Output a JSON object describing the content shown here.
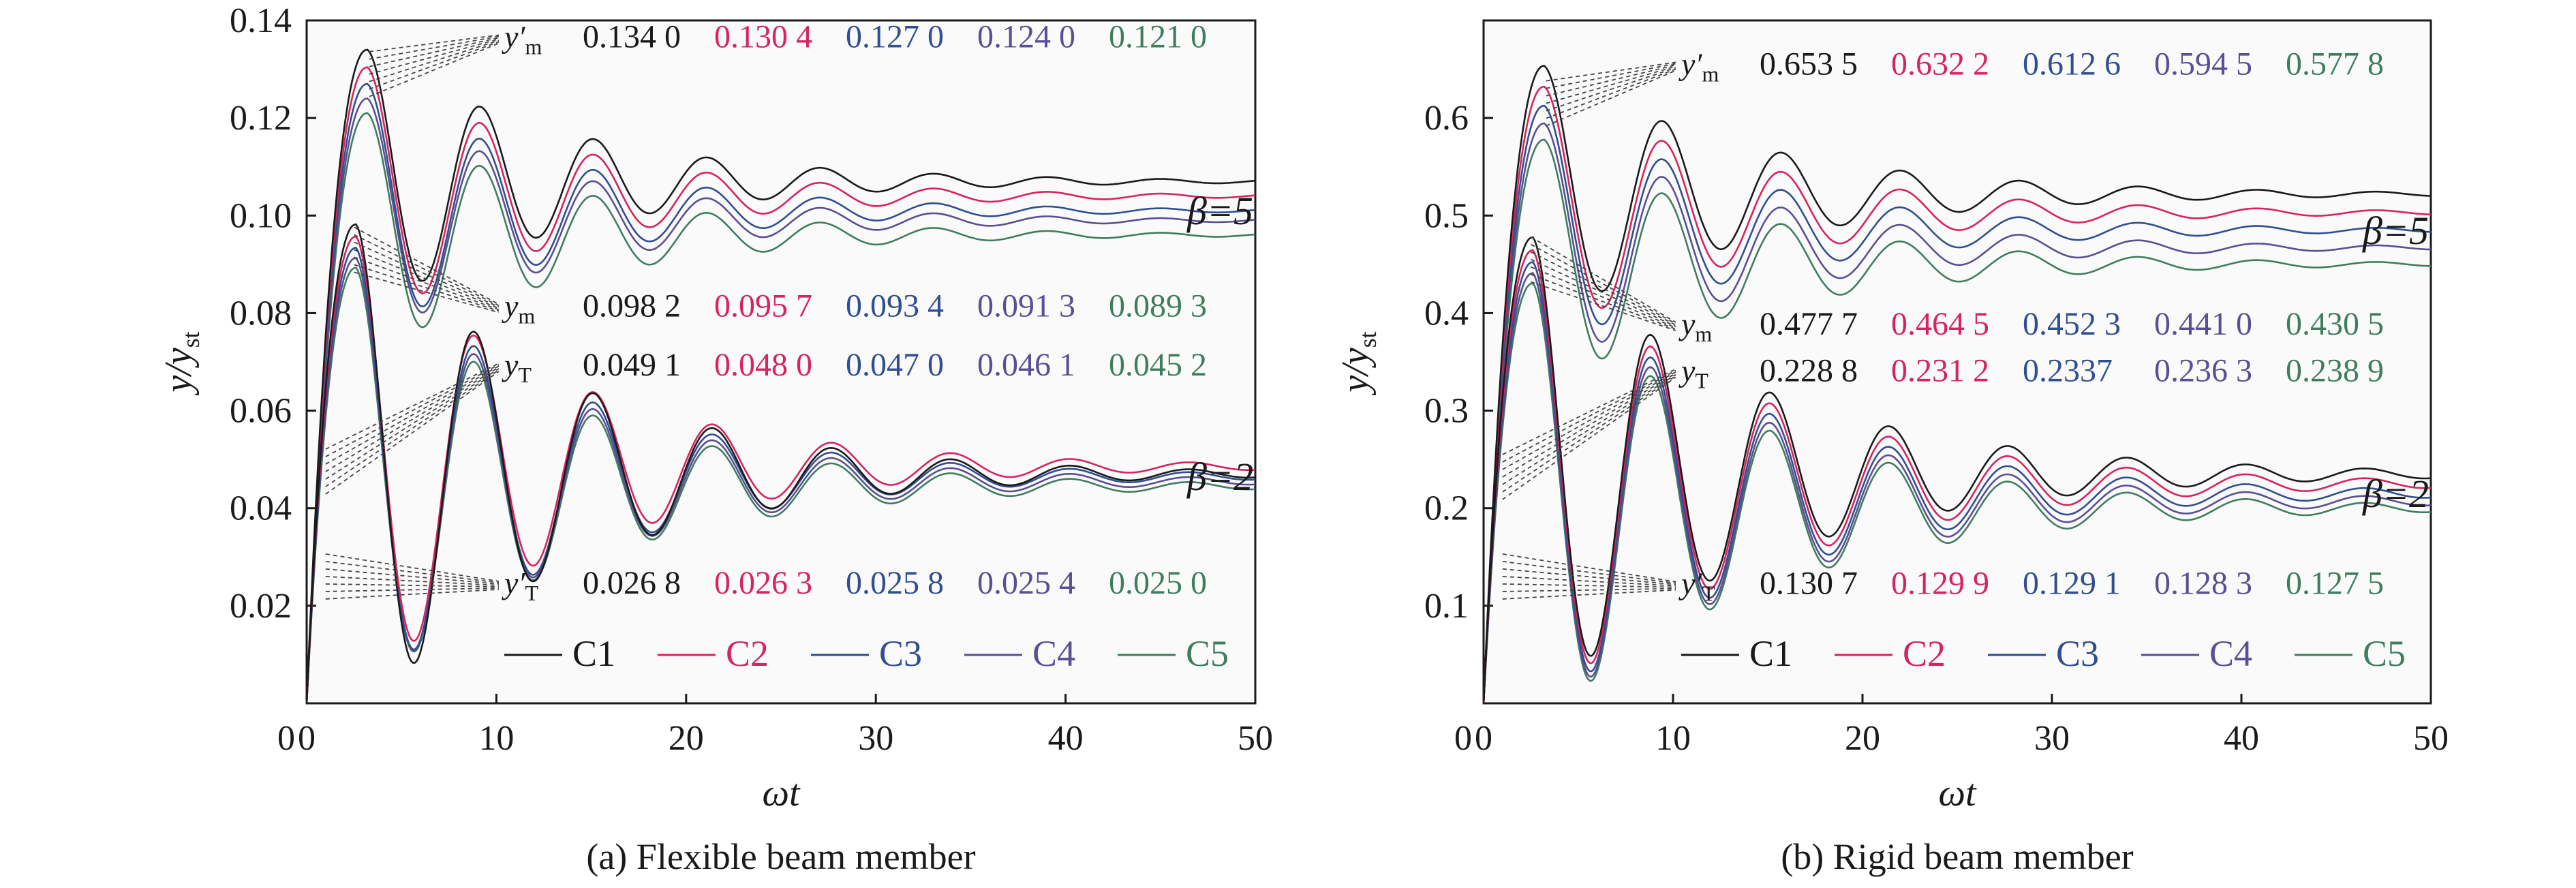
{
  "colors": {
    "C1": "#1a1a1a",
    "C2": "#d6245c",
    "C3": "#2f4f8f",
    "C4": "#5a4f92",
    "C5": "#3f7d5f"
  },
  "legend": [
    "C1",
    "C2",
    "C3",
    "C4",
    "C5"
  ],
  "chart_data": [
    {
      "type": "line",
      "caption": "(a) Flexible beam member",
      "xlabel": "ωt",
      "ylabel": "y/y",
      "ylabel_sub": "st",
      "xlim": [
        0,
        50
      ],
      "ylim": [
        0,
        0.14
      ],
      "xticks": [
        "0",
        "10",
        "20",
        "30",
        "40",
        "50"
      ],
      "yticks": [
        "0.02",
        "0.04",
        "0.06",
        "0.08",
        "0.10",
        "0.12",
        "0.14"
      ],
      "curves": {
        "beta5": {
          "label": "β=5",
          "peak_t": 3.2,
          "omega": 1.05,
          "decay": 0.095,
          "finals": [
            0.107,
            0.104,
            0.101,
            0.099,
            0.096
          ],
          "peaks": [
            0.134,
            0.1304,
            0.127,
            0.124,
            0.121
          ]
        },
        "beta2": {
          "label": "β=2",
          "peak_t": 2.6,
          "omega": 1.0,
          "decay": 0.09,
          "finals": [
            0.047,
            0.0485,
            0.0465,
            0.0455,
            0.0445
          ],
          "peaks": [
            0.0982,
            0.0957,
            0.0934,
            0.0913,
            0.0893
          ]
        }
      },
      "annotations": [
        {
          "sym": "y′",
          "sub": "m",
          "values": [
            "0.134 0",
            "0.130 4",
            "0.127 0",
            "0.124 0",
            "0.121 0"
          ],
          "anchor": [
            3.3,
            0.129
          ],
          "label_y": 0.1345
        },
        {
          "sym": "y",
          "sub": "m",
          "values": [
            "0.098 2",
            "0.095 7",
            "0.093 4",
            "0.091 3",
            "0.089 3"
          ],
          "anchor": [
            2.5,
            0.093
          ],
          "label_y": 0.0793
        },
        {
          "sym": "y",
          "sub": "T",
          "values": [
            "0.049 1",
            "0.048 0",
            "0.047 0",
            "0.046 1",
            "0.045 2"
          ],
          "anchor": [
            1.0,
            0.0475
          ],
          "label_y": 0.0672
        },
        {
          "sym": "y′",
          "sub": "T",
          "values": [
            "0.026 8",
            "0.026 3",
            "0.025 8",
            "0.025 4",
            "0.025 0"
          ],
          "anchor": [
            1.0,
            0.026
          ],
          "label_y": 0.0225
        }
      ]
    },
    {
      "type": "line",
      "caption": "(b) Rigid beam member",
      "xlabel": "ωt",
      "ylabel": "y/y",
      "ylabel_sub": "st",
      "xlim": [
        0,
        50
      ],
      "ylim": [
        0,
        0.7
      ],
      "xticks": [
        "0",
        "10",
        "20",
        "30",
        "40",
        "50"
      ],
      "yticks": [
        "0.1",
        "0.2",
        "0.3",
        "0.4",
        "0.5",
        "0.6"
      ],
      "curves": {
        "beta5": {
          "label": "β=5",
          "peak_t": 3.2,
          "omega": 1.0,
          "decay": 0.09,
          "finals": [
            0.522,
            0.503,
            0.485,
            0.467,
            0.45
          ],
          "peaks": [
            0.6535,
            0.6322,
            0.6126,
            0.5945,
            0.5778
          ]
        },
        "beta2": {
          "label": "β=2",
          "peak_t": 2.6,
          "omega": 1.0,
          "decay": 0.085,
          "finals": [
            0.235,
            0.225,
            0.215,
            0.207,
            0.2
          ],
          "peaks": [
            0.4777,
            0.4645,
            0.4523,
            0.441,
            0.4305
          ]
        }
      },
      "annotations": [
        {
          "sym": "y′",
          "sub": "m",
          "values": [
            "0.653 5",
            "0.632 2",
            "0.612 6",
            "0.594 5",
            "0.577 8"
          ],
          "anchor": [
            3.3,
            0.615
          ],
          "label_y": 0.6445
        },
        {
          "sym": "y",
          "sub": "m",
          "values": [
            "0.477 7",
            "0.464 5",
            "0.452 3",
            "0.441 0",
            "0.430 5"
          ],
          "anchor": [
            2.5,
            0.455
          ],
          "label_y": 0.378
        },
        {
          "sym": "y",
          "sub": "T",
          "values": [
            "0.228 8",
            "0.231 2",
            "0.2337",
            "0.236 3",
            "0.238 9"
          ],
          "anchor": [
            1.0,
            0.232
          ],
          "label_y": 0.33
        },
        {
          "sym": "y′",
          "sub": "T",
          "values": [
            "0.130 7",
            "0.129 9",
            "0.129 1",
            "0.128 3",
            "0.127 5"
          ],
          "anchor": [
            1.0,
            0.13
          ],
          "label_y": 0.112
        }
      ]
    }
  ]
}
